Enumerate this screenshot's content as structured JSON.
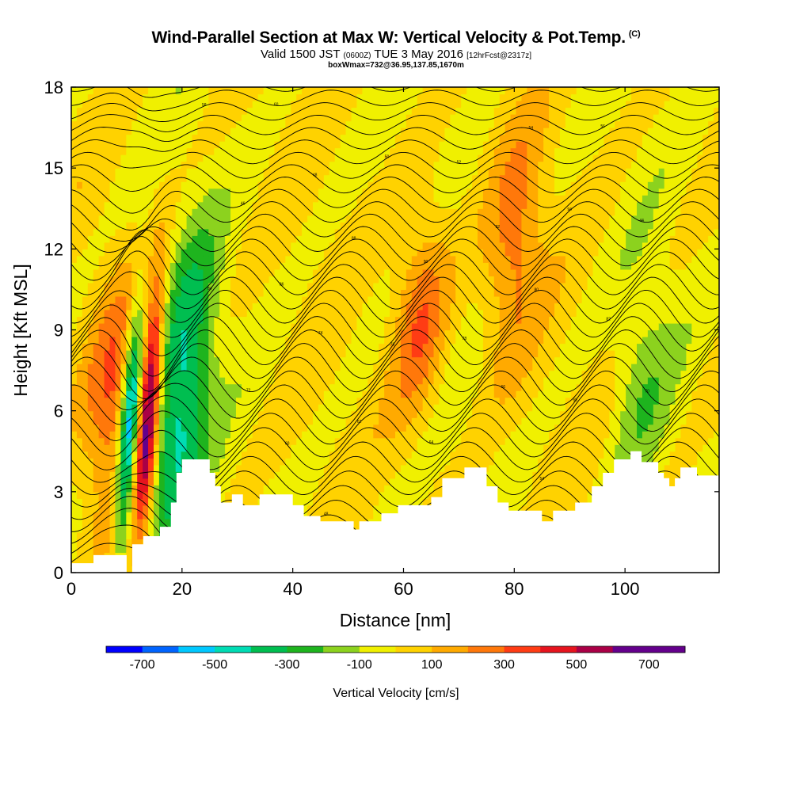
{
  "header": {
    "title": "Wind-Parallel Section at Max W: Vertical Velocity & Pot.Temp.",
    "copyright": "(C)",
    "valid_prefix": "Valid 1500 JST",
    "valid_utc": "(0600Z)",
    "valid_date": "TUE 3 May 2016",
    "forecast": "[12hrFcst@2317z]",
    "box_info": "boxWmax=732@36.95,137.85,1670m"
  },
  "chart_data": {
    "type": "heatmap",
    "xlabel": "Distance [nm]",
    "ylabel": "Height [Kft MSL]",
    "xlim": [
      0,
      117
    ],
    "ylim": [
      0,
      18
    ],
    "xticks": [
      0,
      20,
      40,
      60,
      80,
      100
    ],
    "yticks": [
      0,
      3,
      6,
      9,
      12,
      15,
      18
    ],
    "colorbar": {
      "label": "Vertical Velocity [cm/s]",
      "boundaries": [
        -800,
        -700,
        -600,
        -500,
        -400,
        -300,
        -200,
        -100,
        0,
        100,
        200,
        300,
        400,
        500,
        600,
        700,
        800
      ],
      "colors": [
        "#0000ff",
        "#0064ff",
        "#00c8ff",
        "#00dcb4",
        "#00be50",
        "#1eb41e",
        "#8cd21e",
        "#f0f000",
        "#ffd200",
        "#ffaa00",
        "#ff780a",
        "#ff3c14",
        "#e6141e",
        "#aa0046",
        "#64008c",
        "#64008c"
      ],
      "tick_values": [
        -700,
        -500,
        -300,
        -100,
        100,
        300,
        500,
        700
      ],
      "tick_labels": [
        "-700",
        "-500",
        "-300",
        "-100",
        "100",
        "300",
        "500",
        "700"
      ]
    },
    "terrain": [
      [
        0,
        0.35
      ],
      [
        4,
        0.35
      ],
      [
        4,
        0.65
      ],
      [
        10,
        0.65
      ],
      [
        10,
        0
      ],
      [
        11,
        0
      ],
      [
        11,
        1.05
      ],
      [
        13,
        1.05
      ],
      [
        13,
        1.35
      ],
      [
        16,
        1.35
      ],
      [
        16,
        1.7
      ],
      [
        18,
        1.7
      ],
      [
        18,
        2.6
      ],
      [
        19,
        2.6
      ],
      [
        19,
        3.7
      ],
      [
        20,
        3.7
      ],
      [
        20,
        4.2
      ],
      [
        25,
        4.2
      ],
      [
        25,
        3.7
      ],
      [
        26,
        3.7
      ],
      [
        26,
        3.2
      ],
      [
        27,
        3.2
      ],
      [
        27,
        2.6
      ],
      [
        29,
        2.6
      ],
      [
        29,
        2.9
      ],
      [
        31,
        2.9
      ],
      [
        31,
        2.5
      ],
      [
        34,
        2.5
      ],
      [
        34,
        2.9
      ],
      [
        40,
        2.9
      ],
      [
        40,
        2.5
      ],
      [
        42,
        2.5
      ],
      [
        42,
        2.1
      ],
      [
        45,
        2.1
      ],
      [
        45,
        1.9
      ],
      [
        51,
        1.9
      ],
      [
        51,
        1.6
      ],
      [
        52,
        1.6
      ],
      [
        52,
        1.9
      ],
      [
        56,
        1.9
      ],
      [
        56,
        2.2
      ],
      [
        59,
        2.2
      ],
      [
        59,
        2.5
      ],
      [
        65,
        2.5
      ],
      [
        65,
        2.8
      ],
      [
        67,
        2.8
      ],
      [
        67,
        3.5
      ],
      [
        71,
        3.5
      ],
      [
        71,
        3.9
      ],
      [
        75,
        3.9
      ],
      [
        75,
        3.2
      ],
      [
        77,
        3.2
      ],
      [
        77,
        2.6
      ],
      [
        79,
        2.6
      ],
      [
        79,
        2.3
      ],
      [
        85,
        2.3
      ],
      [
        85,
        1.9
      ],
      [
        87,
        1.9
      ],
      [
        87,
        2.3
      ],
      [
        91,
        2.3
      ],
      [
        91,
        2.6
      ],
      [
        94,
        2.6
      ],
      [
        94,
        3.2
      ],
      [
        96,
        3.2
      ],
      [
        96,
        3.7
      ],
      [
        98,
        3.7
      ],
      [
        98,
        4.2
      ],
      [
        101,
        4.2
      ],
      [
        101,
        4.5
      ],
      [
        103,
        4.5
      ],
      [
        103,
        4.1
      ],
      [
        106,
        4.1
      ],
      [
        106,
        3.7
      ],
      [
        107,
        3.7
      ],
      [
        107,
        3.5
      ],
      [
        108,
        3.5
      ],
      [
        108,
        3.2
      ],
      [
        109,
        3.2
      ],
      [
        109,
        3.5
      ],
      [
        110,
        3.5
      ],
      [
        110,
        3.9
      ],
      [
        113,
        3.9
      ],
      [
        113,
        3.6
      ],
      [
        117,
        3.6
      ]
    ],
    "features": [
      {
        "x": 10.5,
        "y": 5.5,
        "w": -700
      },
      {
        "x": 14.0,
        "y": 6.0,
        "w": 732
      },
      {
        "x": 8.0,
        "y": 6.5,
        "w": 300
      },
      {
        "x": 18.5,
        "y": 4.5,
        "w": -350
      },
      {
        "x": 21.5,
        "y": 9.0,
        "w": -250
      },
      {
        "x": 63.0,
        "y": 9.5,
        "w": 300
      },
      {
        "x": 80.0,
        "y": 12.0,
        "w": 250
      },
      {
        "x": 103.0,
        "y": 7.0,
        "w": -150
      }
    ],
    "contour_labels": [
      "44",
      "46",
      "48",
      "50",
      "52",
      "54",
      "56",
      "58",
      "60",
      "62",
      "64",
      "66",
      "68",
      "70",
      "72",
      "74",
      "76",
      "78",
      "80",
      "82",
      "84",
      "86",
      "88",
      "90",
      "92",
      "94"
    ]
  }
}
